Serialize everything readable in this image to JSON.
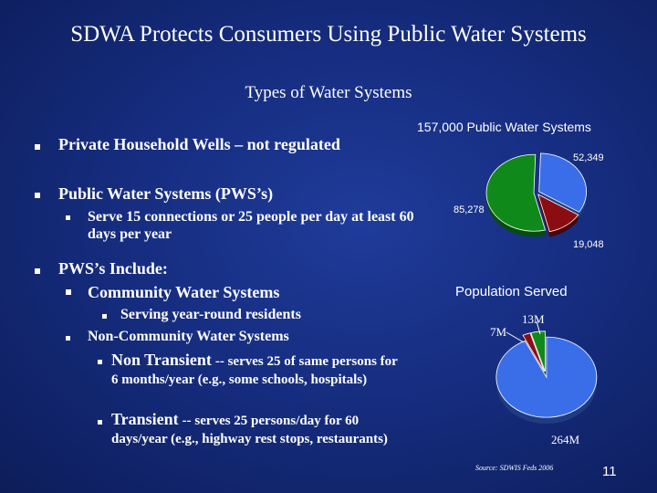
{
  "slide": {
    "title": "SDWA Protects Consumers Using Public Water Systems",
    "subtitle": "Types of Water Systems",
    "page_number": "11",
    "source": "Source: SDWIS Feds 2006"
  },
  "bullets": {
    "private_wells": "Private Household Wells – not regulated",
    "pws": "Public Water Systems (PWS’s)",
    "pws_def": "Serve 15 connections or 25 people per day at least 60 days per year",
    "pws_include": "PWS’s Include:",
    "community": "Community Water Systems",
    "community_def": "Serving year-round residents",
    "noncommunity": "Non-Community Water Systems",
    "nontransient_term": "Non Transient",
    "nontransient_def": "-- serves 25 of same persons for 6 months/year (e.g., some schools, hospitals)",
    "transient_term": "Transient",
    "transient_def": "-- serves 25 persons/day for 60 days/year  (e.g., highway rest stops, restaurants)"
  },
  "chart_data": [
    {
      "type": "pie",
      "title": "157,000 Public Water Systems",
      "labels": [
        "52,349",
        "19,048",
        "85,278"
      ],
      "values": [
        52349,
        19048,
        85278
      ],
      "colors": [
        "#3a6ee8",
        "#8b0d12",
        "#0f8a1a"
      ]
    },
    {
      "type": "pie",
      "title": "Population Served",
      "labels": [
        "264M",
        "7M",
        "13M"
      ],
      "values": [
        264,
        7,
        13
      ],
      "colors": [
        "#3a6ee8",
        "#8b0d12",
        "#0f8a1a"
      ]
    }
  ]
}
